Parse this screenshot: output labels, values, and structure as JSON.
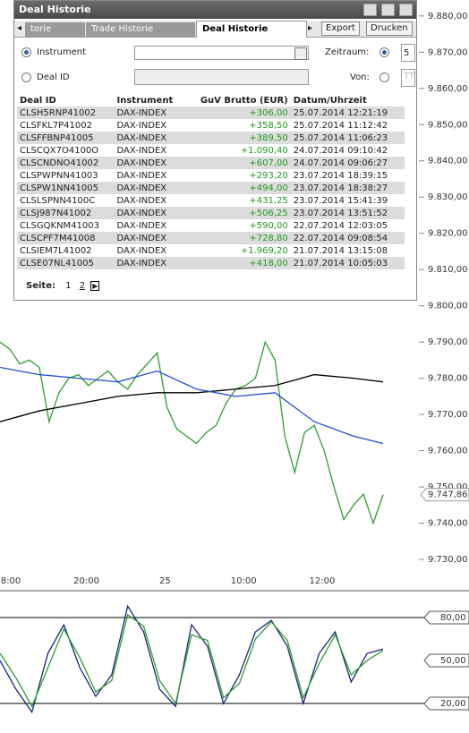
{
  "window": {
    "title": "Deal Historie",
    "tabs": [
      "torie",
      "Trade Historie",
      "Deal Historie"
    ],
    "buttons": [
      "Export",
      "Drucken"
    ]
  },
  "filter": {
    "instrument_label": "Instrument",
    "deal_id_label": "Deal ID",
    "period_label": "Zeitraum:",
    "period_value": "5",
    "from_label": "Von:",
    "from_value": "TT"
  },
  "table": {
    "columns": [
      "Deal ID",
      "Instrument",
      "GuV Brutto (EUR)",
      "Datum/Uhrzeit"
    ],
    "rows": [
      [
        "CLSH5RNP41002",
        "DAX-INDEX",
        "+306,00",
        "25.07.2014 12:21:19"
      ],
      [
        "CLSFKL7P41002",
        "DAX-INDEX",
        "+358,50",
        "25.07.2014 11:12:42"
      ],
      [
        "CLSFFBNP41005",
        "DAX-INDEX",
        "+389,50",
        "25.07.2014 11:06:23"
      ],
      [
        "CLSCQX7O4100O",
        "DAX-INDEX",
        "+1.090,40",
        "24.07.2014 09:10:42"
      ],
      [
        "CLSCNDNO41002",
        "DAX-INDEX",
        "+607,00",
        "24.07.2014 09:06:27"
      ],
      [
        "CLSPWPNN41003",
        "DAX-INDEX",
        "+293,20",
        "23.07.2014 18:39:15"
      ],
      [
        "CLSPW1NN41005",
        "DAX-INDEX",
        "+494,00",
        "23.07.2014 18:38:27"
      ],
      [
        "CLSLSPNN4100C",
        "DAX-INDEX",
        "+431,25",
        "23.07.2014 15:41:39"
      ],
      [
        "CLSJ987N41002",
        "DAX-INDEX",
        "+506,25",
        "23.07.2014 13:51:52"
      ],
      [
        "CLSGQKNM41003",
        "DAX-INDEX",
        "+590,00",
        "22.07.2014 12:03:05"
      ],
      [
        "CLSCPF7M41008",
        "DAX-INDEX",
        "+728,80",
        "22.07.2014 09:08:54"
      ],
      [
        "CLSIEM7L41002",
        "DAX-INDEX",
        "+1.969,20",
        "21.07.2014 13:15:08"
      ],
      [
        "CLSE07NL41005",
        "DAX-INDEX",
        "+418,00",
        "21.07.2014 10:05:03"
      ]
    ]
  },
  "pagination": {
    "label": "Seite:",
    "pages": [
      "1",
      "2"
    ]
  },
  "chart_data": [
    {
      "type": "line",
      "ylim": [
        9722.6,
        9884.4
      ],
      "xlim": [
        0,
        39
      ],
      "yticks": [
        {
          "value": 9880,
          "label": "9.880,00"
        },
        {
          "value": 9870,
          "label": "9.870,00"
        },
        {
          "value": 9860,
          "label": "9.860,00"
        },
        {
          "value": 9850,
          "label": "9.850,00"
        },
        {
          "value": 9840,
          "label": "9.840,00"
        },
        {
          "value": 9830,
          "label": "9.830,00"
        },
        {
          "value": 9820,
          "label": "9.820,00"
        },
        {
          "value": 9810,
          "label": "9.810,00"
        },
        {
          "value": 9800,
          "label": "9.800,00"
        },
        {
          "value": 9790,
          "label": "9.790,00"
        },
        {
          "value": 9780,
          "label": "9.780,00"
        },
        {
          "value": 9770,
          "label": "9.770,00"
        },
        {
          "value": 9760,
          "label": "9.760,00"
        },
        {
          "value": 9750,
          "label": "9.750,00"
        },
        {
          "value": 9740,
          "label": "9.740,00"
        },
        {
          "value": 9730,
          "label": "9.730,00"
        }
      ],
      "xticks": [
        {
          "value": 1.1,
          "label": "8:00"
        },
        {
          "value": 8.8,
          "label": "20:00"
        },
        {
          "value": 16.8,
          "label": "25"
        },
        {
          "value": 24.8,
          "label": "10:00"
        },
        {
          "value": 32.8,
          "label": "12:00"
        }
      ],
      "current": {
        "value": 9747.86,
        "label": "9.747,86"
      },
      "series": [
        {
          "color": "#2ca02c",
          "values": [
            9790,
            9788,
            9784,
            9785,
            9783,
            9768,
            9776,
            9780,
            9781,
            9778,
            9780,
            9782,
            9779,
            9777,
            9781,
            9784,
            9787,
            9772,
            9766,
            9764,
            9762,
            9765,
            9767,
            9773,
            9777,
            9778,
            9780,
            9790,
            9785,
            9764,
            9754,
            9765,
            9767,
            9760,
            9750,
            9741,
            9745,
            9748,
            9740,
            9747.86
          ]
        },
        {
          "color": "#000000",
          "x": [
            0,
            4,
            8,
            12,
            16,
            20,
            24,
            28,
            32,
            36,
            39
          ],
          "values": [
            9768,
            9771,
            9773,
            9775,
            9776,
            9776,
            9777,
            9778,
            9781,
            9780,
            9779
          ]
        },
        {
          "color": "#2050d0",
          "x": [
            0,
            4,
            8,
            12,
            16,
            20,
            24,
            28,
            32,
            36,
            39
          ],
          "values": [
            9783,
            9781,
            9780,
            9779,
            9782,
            9777,
            9775,
            9776,
            9768,
            9764,
            9762
          ]
        }
      ]
    },
    {
      "type": "line",
      "ylim": [
        -0.6,
        97.5
      ],
      "xlim": [
        0,
        24
      ],
      "yticks": [
        {
          "value": 80,
          "label": "80,00"
        },
        {
          "value": 50,
          "label": "50,00"
        },
        {
          "value": 20,
          "label": "20,00"
        }
      ],
      "series": [
        {
          "color": "#1a237e",
          "values": [
            50,
            30,
            14,
            55,
            75,
            45,
            25,
            40,
            88,
            70,
            30,
            18,
            75,
            60,
            20,
            40,
            70,
            78,
            60,
            20,
            55,
            70,
            35,
            55,
            58
          ]
        },
        {
          "color": "#2ca02c",
          "values": [
            55,
            38,
            18,
            45,
            72,
            52,
            28,
            36,
            82,
            74,
            36,
            20,
            68,
            64,
            24,
            34,
            65,
            77,
            64,
            24,
            48,
            68,
            40,
            50,
            57
          ]
        }
      ]
    }
  ]
}
